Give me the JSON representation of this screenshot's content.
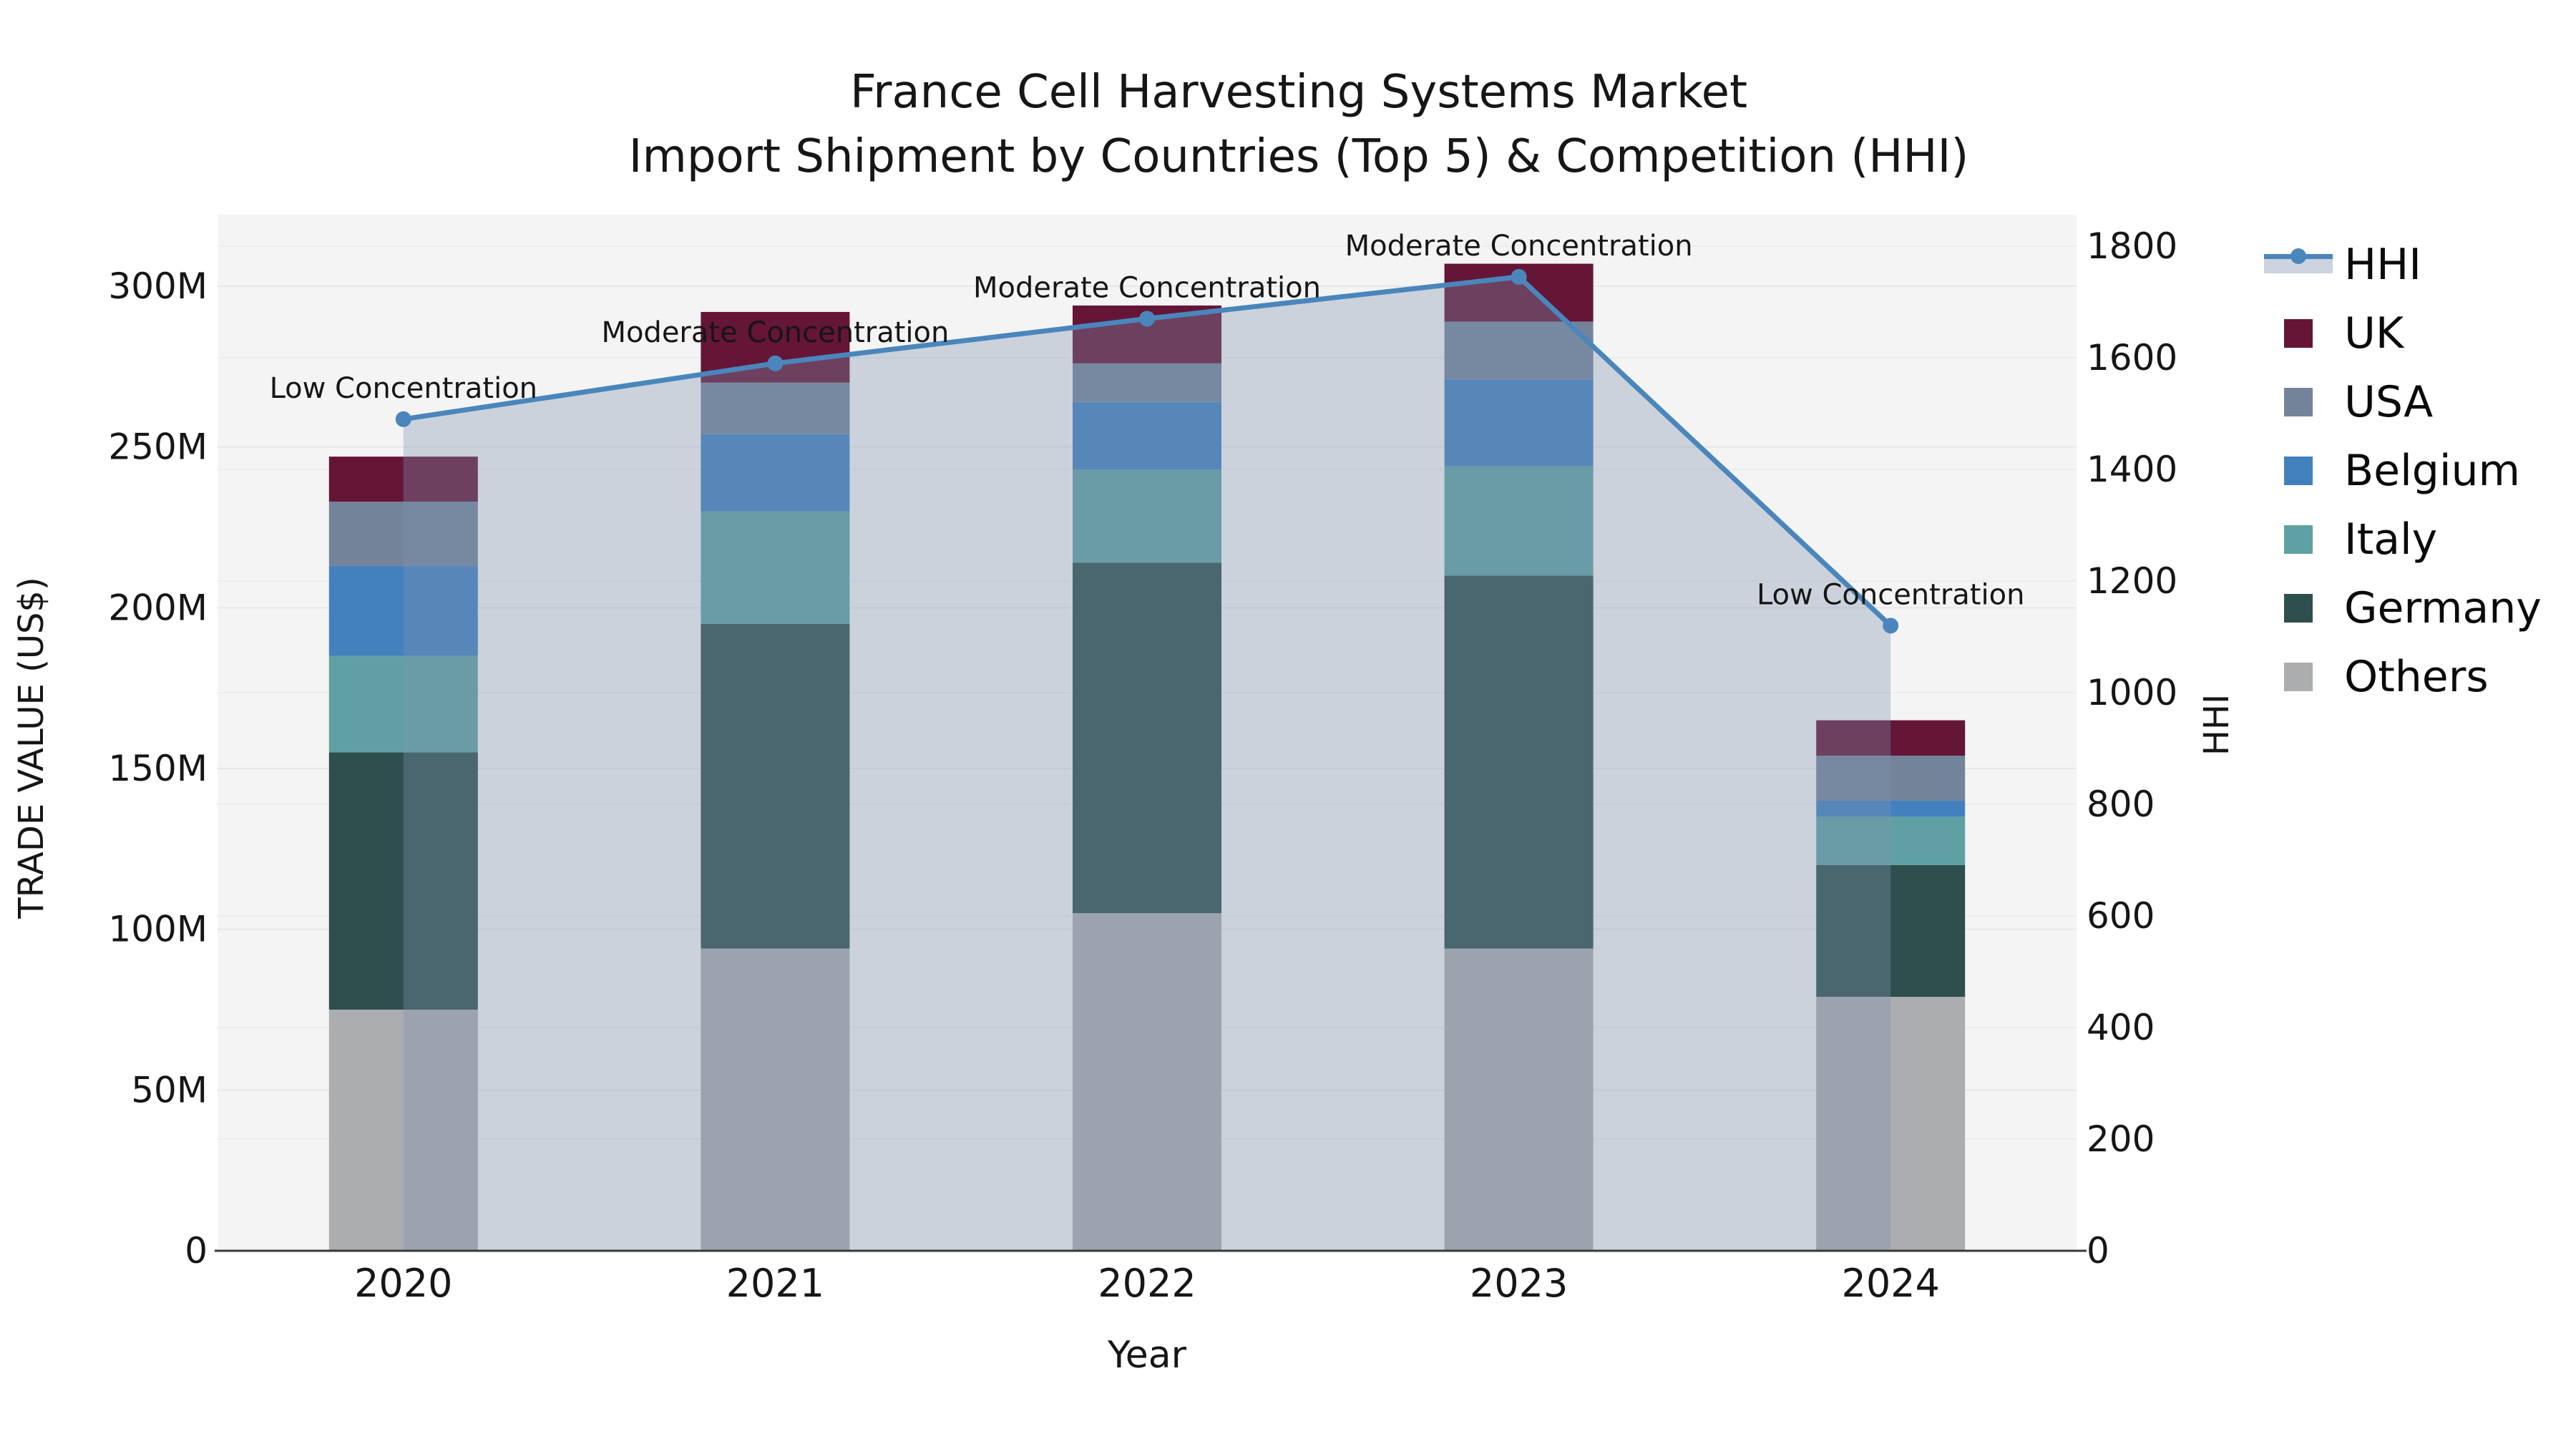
{
  "title": {
    "line1": "France Cell Harvesting Systems Market",
    "line2": "Import Shipment by Countries (Top 5) & Competition (HHI)"
  },
  "chart_data": {
    "type": "combo-stacked-bar-line",
    "categories": [
      "2020",
      "2021",
      "2022",
      "2023",
      "2024"
    ],
    "xlabel": "Year",
    "ylabel_left": "TRADE VALUE (US$)",
    "ylabel_right": "HHI",
    "y_left": {
      "unit": "M US$",
      "min": 0,
      "max": 300,
      "ticks": [
        0,
        50,
        100,
        150,
        200,
        250,
        300
      ],
      "tick_labels": [
        "0",
        "50M",
        "100M",
        "150M",
        "200M",
        "250M",
        "300M"
      ]
    },
    "y_right": {
      "unit": "HHI",
      "min": 0,
      "max": 1800,
      "ticks": [
        0,
        200,
        400,
        600,
        800,
        1000,
        1200,
        1400,
        1600,
        1800
      ],
      "tick_labels": [
        "0",
        "200",
        "400",
        "600",
        "800",
        "1000",
        "1200",
        "1400",
        "1600",
        "1800"
      ]
    },
    "bar_series": [
      {
        "name": "Others",
        "color": "#ACADAF",
        "values": [
          75,
          94,
          105,
          94,
          79
        ]
      },
      {
        "name": "Germany",
        "color": "#2E4F4E",
        "values": [
          80,
          101,
          109,
          116,
          41
        ]
      },
      {
        "name": "Italy",
        "color": "#5FA1A3",
        "values": [
          30,
          35,
          29,
          34,
          15
        ]
      },
      {
        "name": "Belgium",
        "color": "#4281BD",
        "values": [
          28,
          24,
          21,
          27,
          5
        ]
      },
      {
        "name": "USA",
        "color": "#73849A",
        "values": [
          20,
          16,
          12,
          18,
          14
        ]
      },
      {
        "name": "UK",
        "color": "#651536",
        "values": [
          14,
          22,
          18,
          18,
          11
        ]
      }
    ],
    "bar_totals": [
      247,
      292,
      294,
      307,
      165
    ],
    "line_series": {
      "name": "HHI",
      "color": "#4A86BB",
      "area_fill": "rgba(125,145,175,0.35)",
      "values": [
        1490,
        1590,
        1670,
        1745,
        1120
      ],
      "annotations": [
        "Low Concentration",
        "Moderate Concentration",
        "Moderate Concentration",
        "Moderate Concentration",
        "Low Concentration"
      ]
    },
    "legend_order": [
      "HHI",
      "UK",
      "USA",
      "Belgium",
      "Italy",
      "Germany",
      "Others"
    ],
    "layout_hints": {
      "grid": "on",
      "legend_position": "right-outside",
      "plot_background": "#f4f4f5",
      "gridline_color_left": "#e6e7e9",
      "gridline_color_right": "#ebecee",
      "axis_spine_color": "#3a3a3a"
    }
  }
}
